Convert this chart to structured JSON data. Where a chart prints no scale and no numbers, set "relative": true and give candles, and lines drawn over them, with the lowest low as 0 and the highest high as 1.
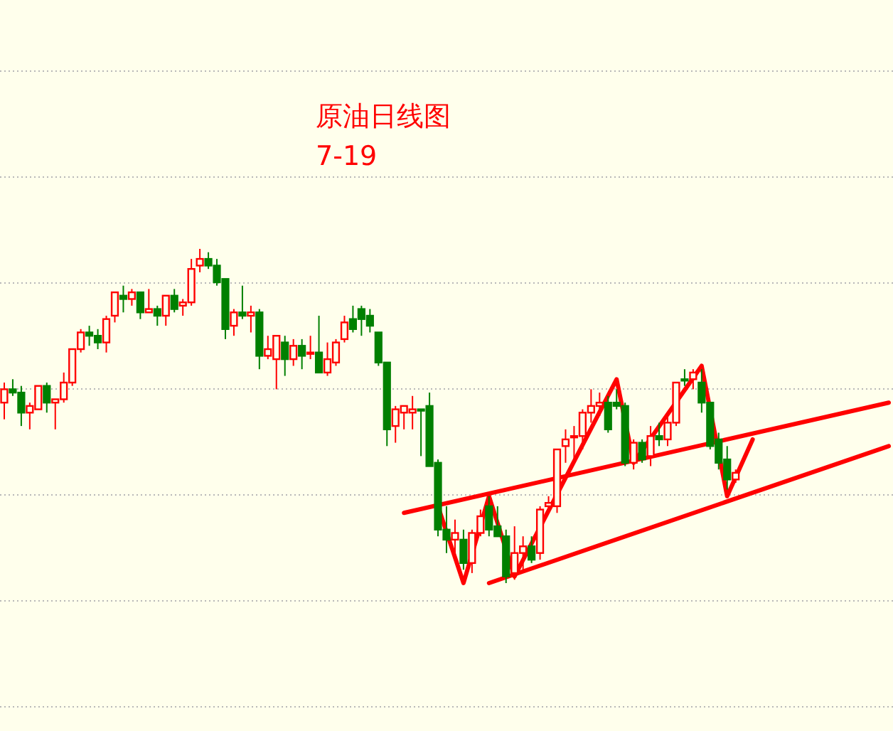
{
  "chart_data": {
    "type": "candlestick",
    "title": "原油日线图",
    "subtitle": "7-19",
    "relative": true,
    "grid": true,
    "categories": [
      null,
      null,
      null,
      null,
      null,
      null,
      null,
      null,
      null,
      null,
      null,
      null,
      null,
      null,
      null,
      null,
      null,
      null,
      null,
      null,
      null,
      null,
      null,
      null,
      null,
      null,
      null,
      null,
      null,
      null,
      null,
      null,
      null,
      null,
      null,
      null,
      null,
      null,
      null,
      null,
      null,
      null,
      null,
      null,
      null,
      null,
      null,
      null,
      null,
      null,
      null,
      null,
      null,
      null,
      null,
      null,
      null,
      null,
      null,
      null,
      null,
      null,
      null,
      null,
      null,
      null,
      null,
      null,
      null,
      null,
      null,
      null,
      null,
      null,
      null,
      null,
      null,
      null,
      null,
      null,
      null,
      null,
      null,
      null,
      null,
      null,
      null,
      null,
      null,
      null,
      null,
      null,
      null,
      null,
      null,
      null,
      null,
      null,
      null,
      null,
      null,
      null,
      null,
      null,
      null
    ],
    "ohlc": [
      [
        0.54,
        0.6,
        0.49,
        0.58
      ],
      [
        0.58,
        0.61,
        0.56,
        0.57
      ],
      [
        0.57,
        0.59,
        0.47,
        0.51
      ],
      [
        0.51,
        0.54,
        0.46,
        0.53
      ],
      [
        0.52,
        0.59,
        0.52,
        0.59
      ],
      [
        0.59,
        0.6,
        0.51,
        0.54
      ],
      [
        0.54,
        0.55,
        0.46,
        0.55
      ],
      [
        0.55,
        0.63,
        0.54,
        0.6
      ],
      [
        0.6,
        0.7,
        0.59,
        0.7
      ],
      [
        0.7,
        0.76,
        0.69,
        0.75
      ],
      [
        0.75,
        0.77,
        0.71,
        0.74
      ],
      [
        0.74,
        0.76,
        0.7,
        0.72
      ],
      [
        0.72,
        0.8,
        0.69,
        0.79
      ],
      [
        0.8,
        0.87,
        0.78,
        0.87
      ],
      [
        0.86,
        0.89,
        0.81,
        0.85
      ],
      [
        0.85,
        0.88,
        0.83,
        0.87
      ],
      [
        0.87,
        0.87,
        0.79,
        0.81
      ],
      [
        0.81,
        0.88,
        0.81,
        0.82
      ],
      [
        0.82,
        0.83,
        0.77,
        0.8
      ],
      [
        0.8,
        0.86,
        0.77,
        0.86
      ],
      [
        0.86,
        0.88,
        0.81,
        0.82
      ],
      [
        0.83,
        0.85,
        0.8,
        0.84
      ],
      [
        0.84,
        0.97,
        0.83,
        0.94
      ],
      [
        0.95,
        1.0,
        0.93,
        0.97
      ],
      [
        0.97,
        0.99,
        0.94,
        0.95
      ],
      [
        0.95,
        0.97,
        0.89,
        0.9
      ],
      [
        0.91,
        0.91,
        0.73,
        0.76
      ],
      [
        0.77,
        0.82,
        0.74,
        0.81
      ],
      [
        0.81,
        0.89,
        0.79,
        0.8
      ],
      [
        0.8,
        0.83,
        0.75,
        0.81
      ],
      [
        0.81,
        0.82,
        0.64,
        0.68
      ],
      [
        0.68,
        0.74,
        0.67,
        0.7
      ],
      [
        0.67,
        0.74,
        0.58,
        0.74
      ],
      [
        0.72,
        0.74,
        0.62,
        0.67
      ],
      [
        0.67,
        0.73,
        0.65,
        0.71
      ],
      [
        0.71,
        0.73,
        0.64,
        0.68
      ],
      [
        0.69,
        0.74,
        0.67,
        0.69
      ],
      [
        0.69,
        0.8,
        0.63,
        0.63
      ],
      [
        0.63,
        0.72,
        0.62,
        0.67
      ],
      [
        0.66,
        0.73,
        0.65,
        0.72
      ],
      [
        0.73,
        0.8,
        0.72,
        0.78
      ],
      [
        0.79,
        0.83,
        0.75,
        0.76
      ],
      [
        0.82,
        0.83,
        0.74,
        0.79
      ],
      [
        0.8,
        0.82,
        0.75,
        0.77
      ],
      [
        0.75,
        0.75,
        0.65,
        0.66
      ],
      [
        0.66,
        0.66,
        0.41,
        0.46
      ],
      [
        0.47,
        0.53,
        0.42,
        0.52
      ],
      [
        0.51,
        0.53,
        0.46,
        0.53
      ],
      [
        0.51,
        0.56,
        0.46,
        0.52
      ],
      [
        0.52,
        0.52,
        0.38,
        0.52
      ],
      [
        0.53,
        0.57,
        0.35,
        0.35
      ],
      [
        0.36,
        0.37,
        0.14,
        0.16
      ],
      [
        0.16,
        0.23,
        0.09,
        0.13
      ],
      [
        0.13,
        0.19,
        0.08,
        0.15
      ],
      [
        0.13,
        0.16,
        0.04,
        0.06
      ],
      [
        0.06,
        0.16,
        0.03,
        0.15
      ],
      [
        0.15,
        0.22,
        0.14,
        0.2
      ],
      [
        0.23,
        0.26,
        0.14,
        0.16
      ],
      [
        0.17,
        0.23,
        0.14,
        0.14
      ],
      [
        0.14,
        0.16,
        0.0,
        0.02
      ],
      [
        0.03,
        0.17,
        0.01,
        0.09
      ],
      [
        0.09,
        0.14,
        0.03,
        0.11
      ],
      [
        0.11,
        0.14,
        0.06,
        0.07
      ],
      [
        0.09,
        0.23,
        0.07,
        0.22
      ],
      [
        0.23,
        0.26,
        0.21,
        0.24
      ],
      [
        0.23,
        0.4,
        0.21,
        0.4
      ],
      [
        0.41,
        0.46,
        0.36,
        0.43
      ],
      [
        0.44,
        0.47,
        0.37,
        0.44
      ],
      [
        0.44,
        0.52,
        0.4,
        0.51
      ],
      [
        0.51,
        0.58,
        0.48,
        0.53
      ],
      [
        0.53,
        0.57,
        0.5,
        0.54
      ],
      [
        0.54,
        0.56,
        0.45,
        0.46
      ],
      [
        0.54,
        0.58,
        0.52,
        0.53
      ],
      [
        0.53,
        0.54,
        0.35,
        0.36
      ],
      [
        0.36,
        0.43,
        0.34,
        0.42
      ],
      [
        0.42,
        0.43,
        0.36,
        0.37
      ],
      [
        0.38,
        0.47,
        0.35,
        0.44
      ],
      [
        0.44,
        0.48,
        0.41,
        0.43
      ],
      [
        0.43,
        0.5,
        0.41,
        0.48
      ],
      [
        0.48,
        0.6,
        0.47,
        0.6
      ],
      [
        0.61,
        0.64,
        0.59,
        0.61
      ],
      [
        0.61,
        0.64,
        0.58,
        0.63
      ],
      [
        0.6,
        0.64,
        0.51,
        0.54
      ],
      [
        0.54,
        0.54,
        0.4,
        0.41
      ],
      [
        0.43,
        0.45,
        0.34,
        0.36
      ],
      [
        0.37,
        0.41,
        0.28,
        0.31
      ],
      [
        0.31,
        0.34,
        0.3,
        0.33
      ],
      null,
      null,
      null,
      null,
      null,
      null,
      null,
      null,
      null,
      null,
      null,
      null,
      null,
      null,
      null,
      null,
      null,
      null
    ],
    "colors": [
      "#ff0000",
      "#008000",
      "#008000",
      "#ff0000",
      "#ff0000",
      "#008000",
      "#ff0000",
      "#ff0000",
      "#ff0000",
      "#ff0000",
      "#008000",
      "#008000",
      "#ff0000",
      "#ff0000",
      "#008000",
      "#ff0000",
      "#008000",
      "#ff0000",
      "#008000",
      "#ff0000",
      "#008000",
      "#ff0000",
      "#ff0000",
      "#ff0000",
      "#008000",
      "#008000",
      "#008000",
      "#ff0000",
      "#008000",
      "#ff0000",
      "#008000",
      "#ff0000",
      "#ff0000",
      "#008000",
      "#ff0000",
      "#008000",
      "#ff0000",
      "#008000",
      "#ff0000",
      "#ff0000",
      "#ff0000",
      "#008000",
      "#008000",
      "#008000",
      "#008000",
      "#008000",
      "#ff0000",
      "#ff0000",
      "#ff0000",
      "#008000",
      "#008000",
      "#008000",
      "#008000",
      "#ff0000",
      "#008000",
      "#ff0000",
      "#ff0000",
      "#008000",
      "#008000",
      "#008000",
      "#ff0000",
      "#ff0000",
      "#008000",
      "#ff0000",
      "#ff0000",
      "#ff0000",
      "#ff0000",
      "#ff0000",
      "#ff0000",
      "#ff0000",
      "#ff0000",
      "#008000",
      "#008000",
      "#008000",
      "#ff0000",
      "#008000",
      "#ff0000",
      "#008000",
      "#ff0000",
      "#ff0000",
      "#008000",
      "#ff0000",
      "#008000",
      "#008000",
      "#008000",
      "#008000",
      "#ff0000",
      null,
      null,
      null,
      null,
      null,
      null,
      null,
      null,
      null,
      null,
      null,
      null,
      null,
      null,
      null,
      null,
      null,
      null
    ],
    "series": [
      {
        "type": "line",
        "color": "#ff0000",
        "values": [
          null,
          null,
          null,
          null,
          null,
          null,
          null,
          null,
          null,
          null,
          null,
          null,
          null,
          null,
          null,
          null,
          null,
          null,
          null,
          null,
          null,
          null,
          null,
          null,
          null,
          null,
          null,
          null,
          null,
          null,
          null,
          null,
          null,
          null,
          null,
          null,
          null,
          null,
          null,
          null,
          null,
          null,
          null,
          null,
          null,
          null,
          null,
          0.21,
          null,
          null,
          null,
          null,
          null,
          null,
          null,
          null,
          null,
          null,
          null,
          null,
          null,
          null,
          null,
          null,
          null,
          null,
          null,
          null,
          null,
          null,
          null,
          null,
          null,
          null,
          null,
          null,
          null,
          null,
          null,
          null,
          null,
          null,
          null,
          null,
          null,
          null,
          null,
          null,
          null,
          null,
          null,
          null,
          null,
          null,
          null,
          null,
          null,
          null,
          null,
          null,
          null,
          null,
          null,
          null,
          0.54
        ]
      },
      {
        "type": "line",
        "color": "#ff0000",
        "values": [
          null,
          null,
          null,
          null,
          null,
          null,
          null,
          null,
          null,
          null,
          null,
          null,
          null,
          null,
          null,
          null,
          null,
          null,
          null,
          null,
          null,
          null,
          null,
          null,
          null,
          null,
          null,
          null,
          null,
          null,
          null,
          null,
          null,
          null,
          null,
          null,
          null,
          null,
          null,
          null,
          null,
          null,
          null,
          null,
          null,
          null,
          null,
          null,
          null,
          null,
          null,
          null,
          null,
          null,
          null,
          null,
          null,
          0.0,
          null,
          null,
          null,
          null,
          null,
          null,
          null,
          null,
          null,
          null,
          null,
          null,
          null,
          null,
          null,
          null,
          null,
          null,
          null,
          null,
          null,
          null,
          null,
          null,
          null,
          null,
          null,
          null,
          null,
          null,
          null,
          null,
          null,
          null,
          null,
          null,
          null,
          null,
          null,
          null,
          null,
          null,
          null,
          null,
          null,
          null,
          0.41
        ]
      },
      {
        "type": "line",
        "color": "#ff0000",
        "values": [
          null,
          null,
          null,
          null,
          null,
          null,
          null,
          null,
          null,
          null,
          null,
          null,
          null,
          null,
          null,
          null,
          null,
          null,
          null,
          null,
          null,
          null,
          null,
          null,
          null,
          null,
          null,
          null,
          null,
          null,
          null,
          null,
          null,
          null,
          null,
          null,
          null,
          null,
          null,
          null,
          null,
          null,
          null,
          null,
          null,
          null,
          null,
          null,
          null,
          null,
          null,
          0.23,
          null,
          null,
          0.0,
          null,
          null,
          0.26,
          null,
          null,
          0.02,
          null,
          null,
          null,
          null,
          null,
          null,
          null,
          null,
          null,
          null,
          null,
          0.61,
          null,
          0.36,
          null,
          null,
          null,
          null,
          null,
          null,
          null,
          0.65,
          null,
          null,
          0.26,
          null,
          null,
          0.43,
          null,
          null,
          null,
          null,
          null,
          null,
          null,
          null,
          null,
          null,
          null,
          null,
          null,
          null,
          null,
          null
        ]
      }
    ]
  }
}
